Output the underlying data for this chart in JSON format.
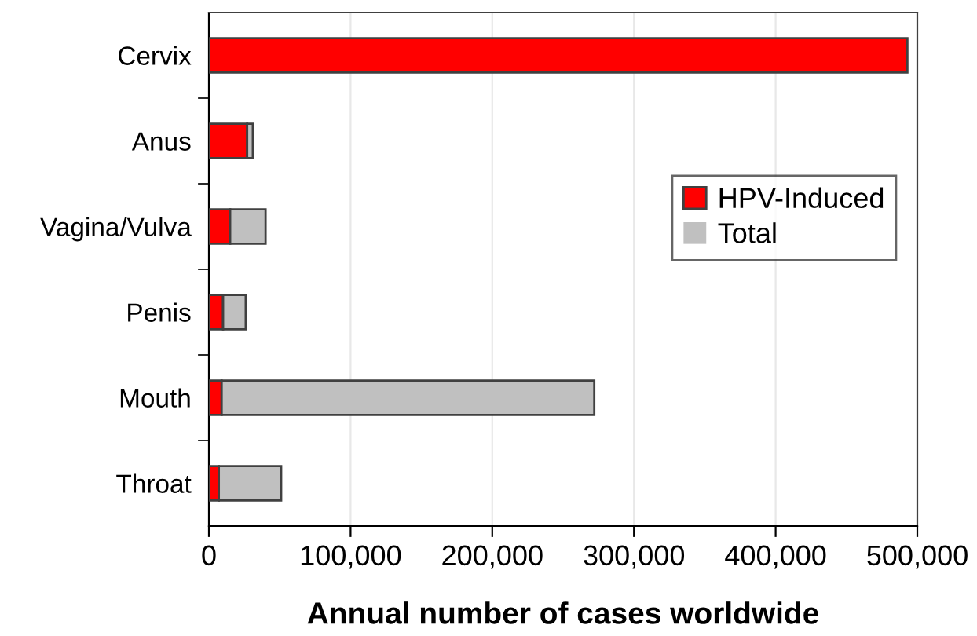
{
  "chart_data": {
    "type": "bar",
    "orientation": "horizontal",
    "stacked": true,
    "xlabel": "Annual number of cases worldwide",
    "categories": [
      "Cervix",
      "Anus",
      "Vagina/Vulva",
      "Penis",
      "Mouth",
      "Throat"
    ],
    "series": [
      {
        "name": "HPV-Induced",
        "color": "#ff0000",
        "values": [
          493000,
          27000,
          15000,
          10000,
          9000,
          7000
        ]
      },
      {
        "name": "Total",
        "color": "#c0c0c0",
        "values": [
          0,
          4000,
          25000,
          16000,
          263000,
          44000
        ]
      }
    ],
    "xlim": [
      0,
      500000
    ],
    "xticks": [
      {
        "value": 0,
        "label": "0"
      },
      {
        "value": 100000,
        "label": "100,000"
      },
      {
        "value": 200000,
        "label": "200,000"
      },
      {
        "value": 300000,
        "label": "300,000"
      },
      {
        "value": 400000,
        "label": "400,000"
      },
      {
        "value": 500000,
        "label": "500,000"
      }
    ],
    "grid": "x",
    "legend": "right"
  }
}
